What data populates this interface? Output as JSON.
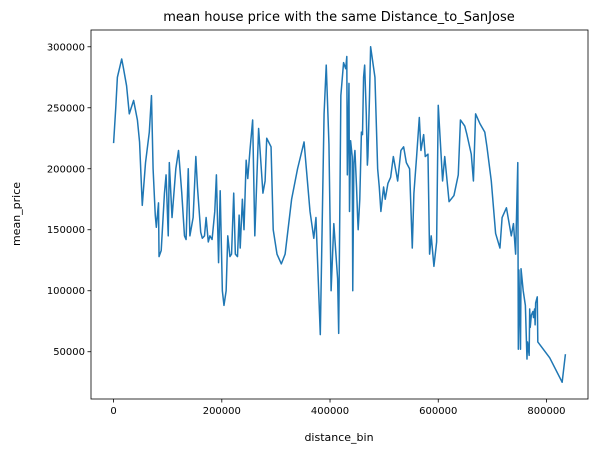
{
  "chart_data": {
    "type": "line",
    "title": "mean house price with the same Distance_to_SanJose",
    "x_label": "distance_bin",
    "y_label": "mean_price",
    "color": "#1f77b4",
    "xlim": [
      -41750,
      876750
    ],
    "ylim": [
      11250,
      313750
    ],
    "xticks": [
      0,
      200000,
      400000,
      600000,
      800000
    ],
    "yticks": [
      50000,
      100000,
      150000,
      200000,
      250000,
      300000
    ],
    "x": [
      0,
      4000,
      7000,
      15000,
      18000,
      24000,
      29000,
      37000,
      44000,
      48000,
      53000,
      59000,
      66000,
      70000,
      73000,
      77000,
      79000,
      83000,
      84000,
      88000,
      94000,
      97000,
      101000,
      103000,
      108000,
      115000,
      120000,
      126000,
      131000,
      134000,
      138000,
      141000,
      147000,
      152000,
      155000,
      161000,
      164000,
      168000,
      171000,
      175000,
      178000,
      182000,
      187000,
      190000,
      194000,
      197000,
      201000,
      204000,
      208000,
      211000,
      215000,
      218000,
      222000,
      225000,
      229000,
      232000,
      234000,
      238000,
      241000,
      245000,
      248000,
      252000,
      257000,
      261000,
      268000,
      276000,
      280000,
      283000,
      291000,
      295000,
      302000,
      310000,
      317000,
      329000,
      340000,
      352000,
      363000,
      370000,
      374000,
      382000,
      389000,
      393000,
      398000,
      402000,
      407000,
      414000,
      416000,
      420000,
      425000,
      429000,
      431000,
      432000,
      435000,
      436000,
      438000,
      441000,
      442000,
      444000,
      446000,
      449000,
      451000,
      452000,
      455000,
      458000,
      460000,
      462000,
      464000,
      467000,
      469000,
      470000,
      473000,
      475000,
      483000,
      488000,
      491000,
      494000,
      499000,
      502000,
      507000,
      512000,
      517000,
      523000,
      525000,
      531000,
      536000,
      541000,
      547000,
      552000,
      555000,
      560000,
      565000,
      568000,
      573000,
      576000,
      581000,
      584000,
      587000,
      592000,
      597000,
      600000,
      608000,
      612000,
      620000,
      629000,
      637000,
      641000,
      649000,
      653000,
      661000,
      665000,
      669000,
      677000,
      686000,
      690000,
      698000,
      706000,
      714000,
      718000,
      726000,
      735000,
      739000,
      743000,
      747000,
      748000,
      749000,
      752000,
      753000,
      757000,
      761000,
      763000,
      764000,
      765000,
      768000,
      769000,
      770000,
      772000,
      775000,
      776000,
      778000,
      779000,
      780000,
      783000,
      784000,
      806000,
      829000,
      835000
    ],
    "values": [
      221000,
      250000,
      275000,
      290000,
      283000,
      268000,
      245000,
      256000,
      240000,
      222000,
      170000,
      205000,
      230000,
      260000,
      200000,
      162000,
      152000,
      172000,
      128000,
      133000,
      180000,
      195000,
      145000,
      205000,
      160000,
      200000,
      215000,
      180000,
      145000,
      142000,
      200000,
      145000,
      160000,
      210000,
      185000,
      148000,
      143000,
      145000,
      160000,
      140000,
      145000,
      142000,
      165000,
      195000,
      123000,
      182000,
      100000,
      88000,
      100000,
      145000,
      128000,
      130000,
      180000,
      130000,
      128000,
      162000,
      135000,
      175000,
      150000,
      207000,
      192000,
      215000,
      240000,
      145000,
      233000,
      180000,
      190000,
      225000,
      218000,
      150000,
      130000,
      122000,
      130000,
      175000,
      200000,
      222000,
      165000,
      143000,
      160000,
      64000,
      245000,
      285000,
      220000,
      100000,
      155000,
      110000,
      65000,
      260000,
      287000,
      282000,
      292000,
      195000,
      270000,
      165000,
      223000,
      210000,
      100000,
      205000,
      215000,
      185000,
      160000,
      150000,
      175000,
      230000,
      228000,
      275000,
      285000,
      245000,
      203000,
      210000,
      260000,
      300000,
      275000,
      200000,
      185000,
      165000,
      185000,
      175000,
      188000,
      193000,
      210000,
      195000,
      190000,
      215000,
      218000,
      205000,
      200000,
      135000,
      180000,
      210000,
      242000,
      215000,
      228000,
      210000,
      212000,
      130000,
      145000,
      120000,
      140000,
      252000,
      190000,
      210000,
      173000,
      178000,
      195000,
      240000,
      235000,
      228000,
      212000,
      190000,
      245000,
      237000,
      230000,
      218000,
      190000,
      147000,
      135000,
      160000,
      168000,
      145000,
      155000,
      130000,
      205000,
      52000,
      117000,
      52000,
      118000,
      100000,
      88000,
      58000,
      44000,
      58000,
      47000,
      85000,
      70000,
      80000,
      83000,
      78000,
      85000,
      72000,
      90000,
      95000,
      58000,
      45000,
      25000,
      48000
    ]
  }
}
